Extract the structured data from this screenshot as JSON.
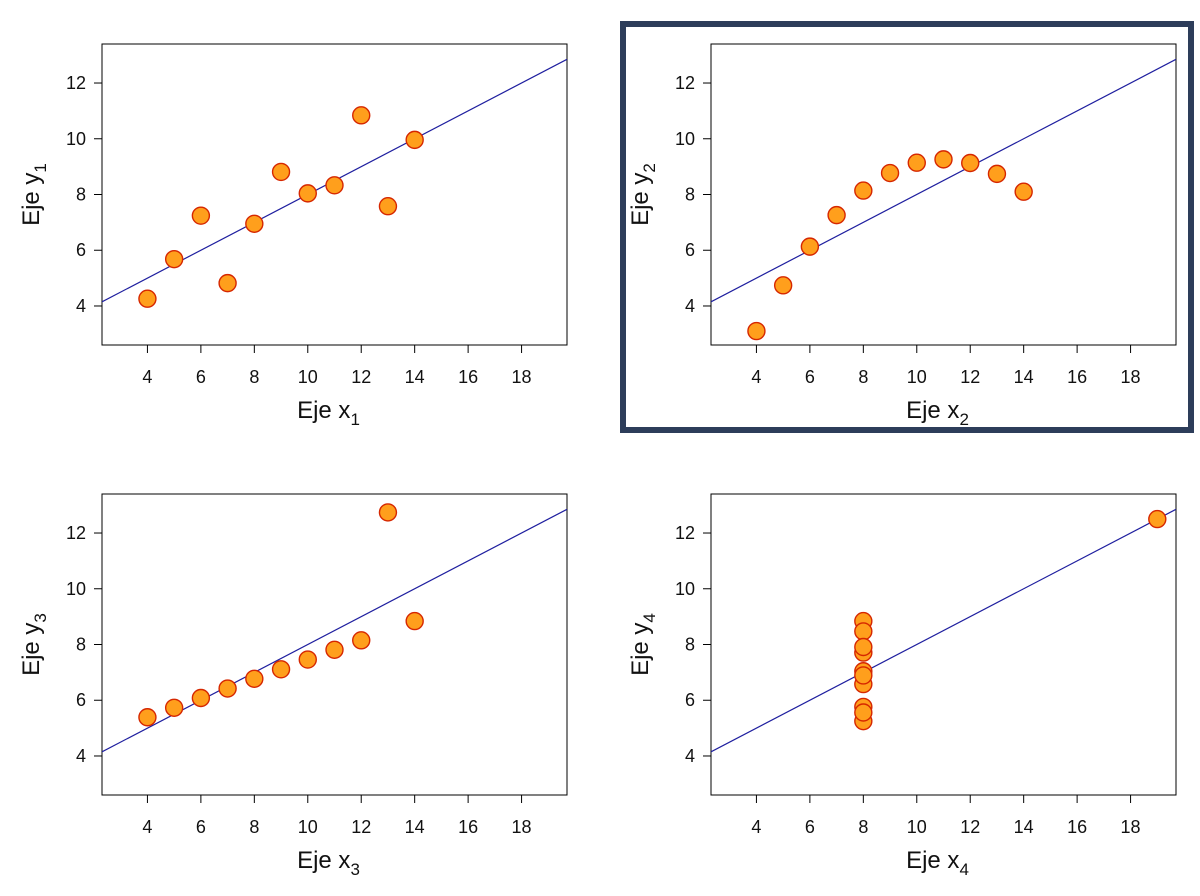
{
  "colors": {
    "marker_fill": "#ff9f1c",
    "marker_stroke": "#d62700",
    "fit_line": "#1f1f9f",
    "highlight_frame": "#2d3d5a",
    "axis": "#000000"
  },
  "chart_data": [
    {
      "type": "scatter",
      "xlabel": "Eje x",
      "xlabel_sub": "1",
      "ylabel": "Eje y",
      "ylabel_sub": "1",
      "xlim": [
        2.3,
        19.7
      ],
      "ylim": [
        2.6,
        13.4
      ],
      "xticks": [
        4,
        6,
        8,
        10,
        12,
        14,
        16,
        18
      ],
      "yticks": [
        4,
        6,
        8,
        10,
        12
      ],
      "grid": false,
      "highlighted": false,
      "fit_line": {
        "intercept": 3.0,
        "slope": 0.5
      },
      "x": [
        10,
        8,
        13,
        9,
        11,
        14,
        6,
        4,
        12,
        7,
        5
      ],
      "y": [
        8.04,
        6.95,
        7.58,
        8.81,
        8.33,
        9.96,
        7.24,
        4.26,
        10.84,
        4.82,
        5.68
      ]
    },
    {
      "type": "scatter",
      "xlabel": "Eje x",
      "xlabel_sub": "2",
      "ylabel": "Eje y",
      "ylabel_sub": "2",
      "xlim": [
        2.3,
        19.7
      ],
      "ylim": [
        2.6,
        13.4
      ],
      "xticks": [
        4,
        6,
        8,
        10,
        12,
        14,
        16,
        18
      ],
      "yticks": [
        4,
        6,
        8,
        10,
        12
      ],
      "grid": false,
      "highlighted": true,
      "fit_line": {
        "intercept": 3.0,
        "slope": 0.5
      },
      "x": [
        10,
        8,
        13,
        9,
        11,
        14,
        6,
        4,
        12,
        7,
        5
      ],
      "y": [
        9.14,
        8.14,
        8.74,
        8.77,
        9.26,
        8.1,
        6.13,
        3.1,
        9.13,
        7.26,
        4.74
      ]
    },
    {
      "type": "scatter",
      "xlabel": "Eje x",
      "xlabel_sub": "3",
      "ylabel": "Eje y",
      "ylabel_sub": "3",
      "xlim": [
        2.3,
        19.7
      ],
      "ylim": [
        2.6,
        13.4
      ],
      "xticks": [
        4,
        6,
        8,
        10,
        12,
        14,
        16,
        18
      ],
      "yticks": [
        4,
        6,
        8,
        10,
        12
      ],
      "grid": false,
      "highlighted": false,
      "fit_line": {
        "intercept": 3.0,
        "slope": 0.5
      },
      "x": [
        10,
        8,
        13,
        9,
        11,
        14,
        6,
        4,
        12,
        7,
        5
      ],
      "y": [
        7.46,
        6.77,
        12.74,
        7.11,
        7.81,
        8.84,
        6.08,
        5.39,
        8.15,
        6.42,
        5.73
      ]
    },
    {
      "type": "scatter",
      "xlabel": "Eje x",
      "xlabel_sub": "4",
      "ylabel": "Eje y",
      "ylabel_sub": "4",
      "xlim": [
        2.3,
        19.7
      ],
      "ylim": [
        2.6,
        13.4
      ],
      "xticks": [
        4,
        6,
        8,
        10,
        12,
        14,
        16,
        18
      ],
      "yticks": [
        4,
        6,
        8,
        10,
        12
      ],
      "grid": false,
      "highlighted": false,
      "fit_line": {
        "intercept": 3.0,
        "slope": 0.5
      },
      "x": [
        8,
        8,
        8,
        8,
        8,
        8,
        8,
        19,
        8,
        8,
        8
      ],
      "y": [
        6.58,
        5.76,
        7.71,
        8.84,
        8.47,
        7.04,
        5.25,
        12.5,
        5.56,
        7.91,
        6.89
      ]
    }
  ]
}
